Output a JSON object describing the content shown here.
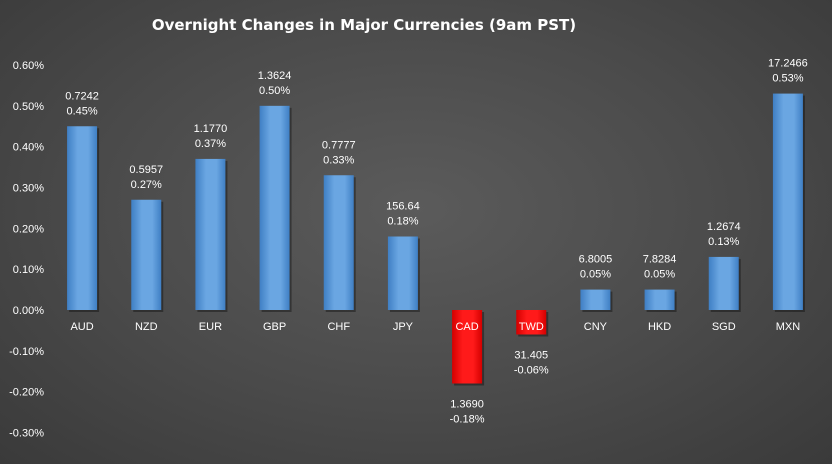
{
  "chart_data": {
    "type": "bar",
    "title": "Overnight Changes in Major Currencies (9am PST)",
    "xlabel": "",
    "ylabel": "",
    "ylim": [
      -0.003,
      0.006
    ],
    "yticks": [
      "-0.30%",
      "-0.20%",
      "-0.10%",
      "0.00%",
      "0.10%",
      "0.20%",
      "0.30%",
      "0.40%",
      "0.50%",
      "0.60%"
    ],
    "grid": false,
    "legend": "none",
    "categories": [
      "AUD",
      "NZD",
      "EUR",
      "GBP",
      "CHF",
      "JPY",
      "CAD",
      "TWD",
      "CNY",
      "HKD",
      "SGD",
      "MXN"
    ],
    "values": [
      0.0045,
      0.0027,
      0.0037,
      0.005,
      0.0033,
      0.0018,
      -0.0018,
      -0.0006,
      0.0005,
      0.0005,
      0.0013,
      0.0053
    ],
    "rate_labels": [
      "0.7242",
      "0.5957",
      "1.1770",
      "1.3624",
      "0.7777",
      "156.64",
      "1.3690",
      "31.405",
      "6.8005",
      "7.8284",
      "1.2674",
      "17.2466"
    ],
    "pct_labels": [
      "0.45%",
      "0.27%",
      "0.37%",
      "0.50%",
      "0.33%",
      "0.18%",
      "-0.18%",
      "-0.06%",
      "0.05%",
      "0.05%",
      "0.13%",
      "0.53%"
    ],
    "colors": {
      "positive": "#5b9bd5",
      "negative": "#ff0000",
      "text": "#ffffff"
    }
  }
}
